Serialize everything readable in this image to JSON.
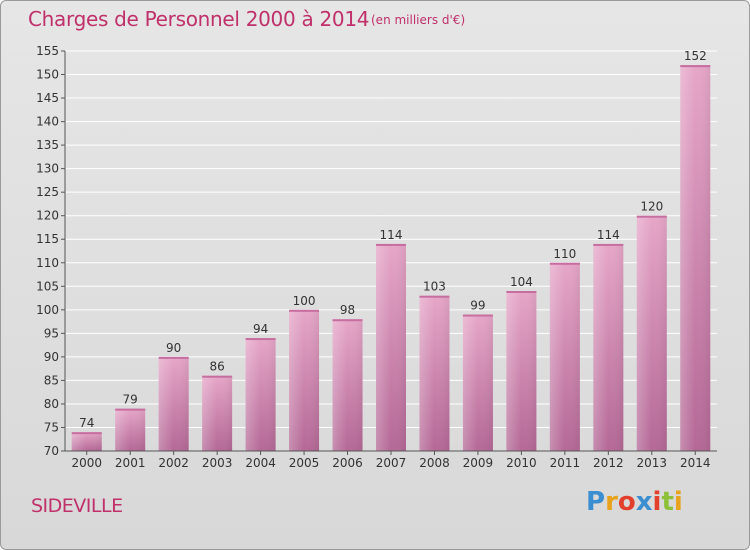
{
  "header": {
    "title": "Charges de Personnel 2000 à 2014",
    "subtitle": "(en milliers d'€)"
  },
  "footer": {
    "place": "SIDEVILLE",
    "logo_text": "Proxiti"
  },
  "colors": {
    "title": "#c0306a",
    "bar_top": "#e6a6c8",
    "bar_bottom": "#b46896",
    "grid": "#ffffff"
  },
  "chart_data": {
    "type": "bar",
    "title": "Charges de Personnel 2000 à 2014",
    "subtitle": "(en milliers d'€)",
    "xlabel": "",
    "ylabel": "",
    "categories": [
      "2000",
      "2001",
      "2002",
      "2003",
      "2004",
      "2005",
      "2006",
      "2007",
      "2008",
      "2009",
      "2010",
      "2011",
      "2012",
      "2013",
      "2014"
    ],
    "values": [
      74,
      79,
      90,
      86,
      94,
      100,
      98,
      114,
      103,
      99,
      104,
      110,
      114,
      120,
      152
    ],
    "ylim": [
      70,
      155
    ],
    "yticks": [
      70,
      75,
      80,
      85,
      90,
      95,
      100,
      105,
      110,
      115,
      120,
      125,
      130,
      135,
      140,
      145,
      150,
      155
    ],
    "grid": "horizontal",
    "data_labels": true,
    "legend": "none"
  }
}
